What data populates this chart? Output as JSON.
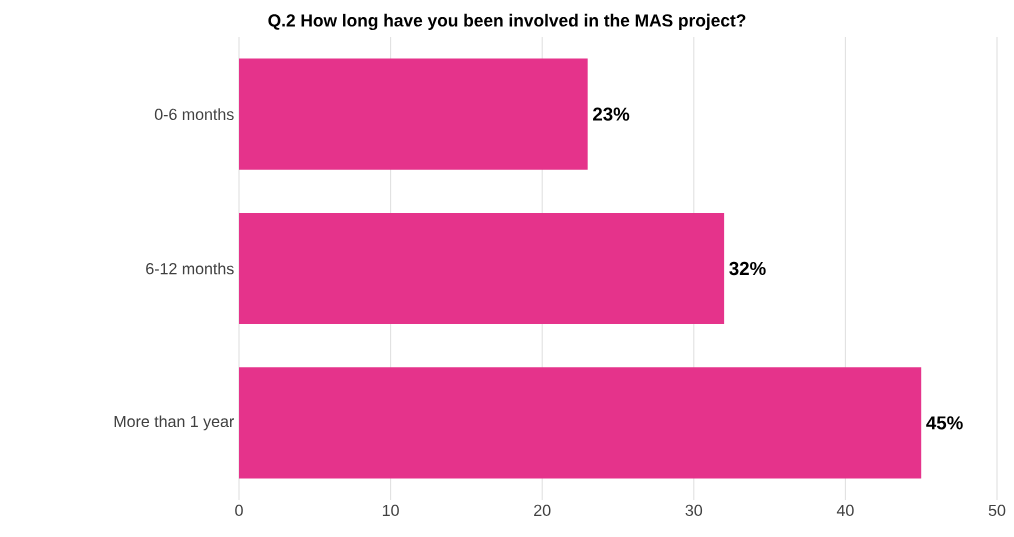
{
  "chart_data": {
    "type": "bar",
    "orientation": "horizontal",
    "title": "Q.2 How long have you been involved in the MAS project?",
    "categories": [
      "0-6 months",
      "6-12 months",
      "More than 1 year"
    ],
    "values": [
      23,
      32,
      45
    ],
    "value_labels": [
      "23%",
      "32%",
      "45%"
    ],
    "color": "#e5338b",
    "xlim": [
      0,
      50
    ],
    "xticks": [
      0,
      10,
      20,
      30,
      40,
      50
    ],
    "grid": "x"
  }
}
